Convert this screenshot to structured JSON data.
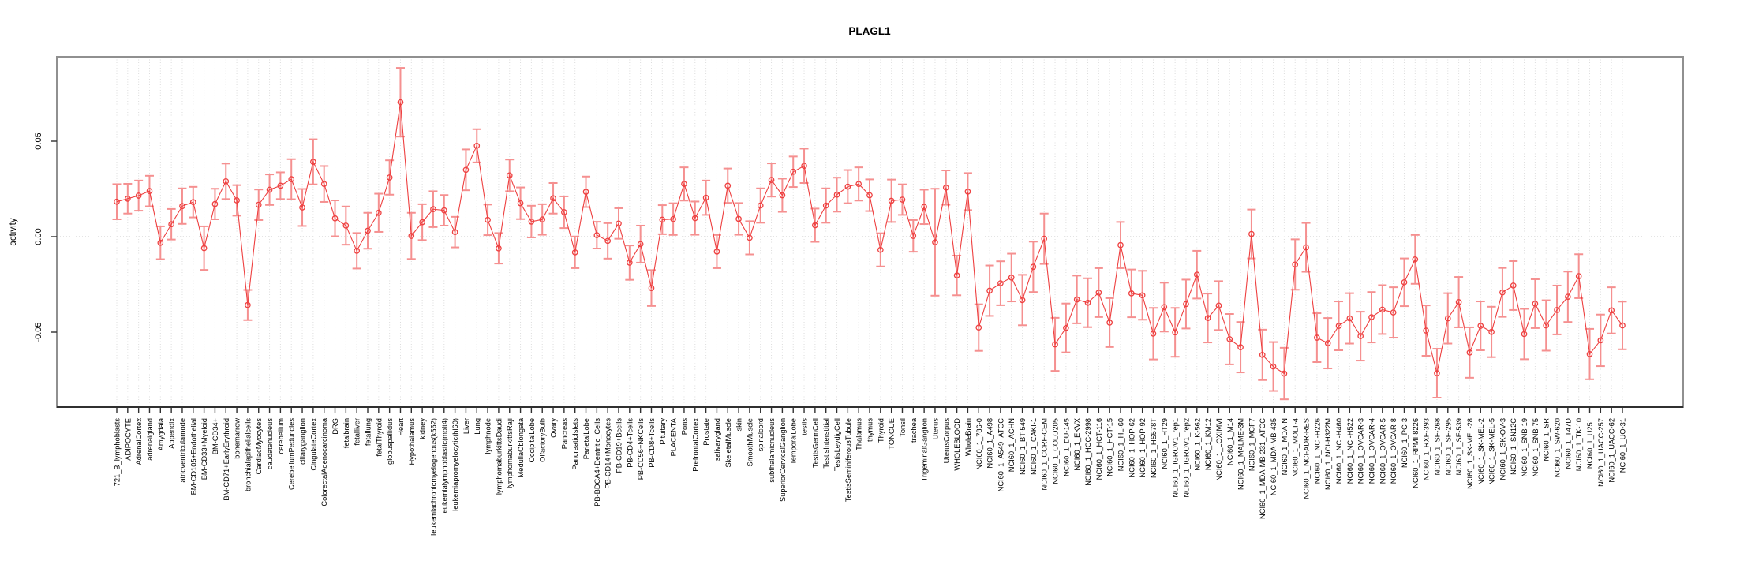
{
  "chart_data": {
    "type": "line",
    "title": "PLAGL1",
    "ylabel": "activity",
    "xlabel": "",
    "legend": "none",
    "grid": "dotted vertical per category, dotted horizontal at 0",
    "ylim": [
      -0.089,
      0.094
    ],
    "yticks": [
      {
        "value": 0.05,
        "label": "0.05"
      },
      {
        "value": 0.0,
        "label": "0.00"
      },
      {
        "value": -0.05,
        "label": "-0.05"
      }
    ],
    "series_color": "#ee4040",
    "errorbar_color": "#f59090",
    "gridline_color": "#dcdcdc",
    "zeroline_color": "#c9c9c9",
    "box_color": "#909090",
    "axis_color": "#303030",
    "marker": "open-circle",
    "categories": [
      "721_B_lymphoblasts",
      "ADIPOCYTE",
      "AdrenalCortex",
      "adrenalgland",
      "Amygdala",
      "Appendix",
      "atrioventricularnode",
      "BM-CD105+Endothelial",
      "BM-CD33+Myeloid",
      "BM-CD34+",
      "BM-CD71+EarlyErythroid",
      "bonemarrow",
      "bronchialepithelialcells",
      "CardiacMyocytes",
      "caudatenucleus",
      "cerebellum",
      "CerebellumPeduncles",
      "ciliaryganglion",
      "CingulateCortex",
      "ColorectalAdenocarcinoma",
      "DRG",
      "fetalbrain",
      "fetalliver",
      "fetallung",
      "fetalThyroid",
      "globuspallidus",
      "Heart",
      "Hypothalamus",
      "kidney",
      "leukemiachronicmyelogenous(k562)",
      "leukemialymphoblastic(molt4)",
      "leukemiapromyelocytic(hl60)",
      "Liver",
      "Lung",
      "lymphnode",
      "lymphomaburkittsDaudi",
      "lymphomaburkittsRaji",
      "MedullaOblongata",
      "OccipitalLobe",
      "OlfactoryBulb",
      "Ovary",
      "Pancreas",
      "PancreaticIslets",
      "ParietalLobe",
      "PB-BDCA4+Dentritic_Cells",
      "PB-CD14+Monocytes",
      "PB-CD19+Bcells",
      "PB-CD4+Tcells",
      "PB-CD56+NKCells",
      "PB-CD8+Tcells",
      "Pituitary",
      "PLACENTA",
      "Pons",
      "PrefrontalCortex",
      "Prostate",
      "salivarygland",
      "SkeletalMuscle",
      "skin",
      "SmoothMuscle",
      "spinalcord",
      "subthalamicnucleus",
      "SuperiorCervicalGanglion",
      "TemporalLobe",
      "testis",
      "TestisGermCell",
      "TestisInterstitial",
      "TestisLeydigCell",
      "TestisSeminiferousTubule",
      "Thalamus",
      "thymus",
      "Thyroid",
      "TONGUE",
      "Tonsil",
      "trachea",
      "TrigeminalGanglion",
      "Uterus",
      "UterusCorpus",
      "WHOLEBLOOD",
      "WholeBrain",
      "NCI60_1_786-0",
      "NCI60_1_A498",
      "NCI60_1_A549_ATCC",
      "NCI60_1_ACHN",
      "NCI60_1_BT-549",
      "NCI60_1_CAKI-1",
      "NCI60_1_CCRF-CEM",
      "NCI60_1_COLO205",
      "NCI60_1_DU-145",
      "NCI60_1_EKVX",
      "NCI60_1_HCC-2998",
      "NCI60_1_HCT-116",
      "NCI60_1_HCT-15",
      "NCI60_1_HL-60",
      "NCI60_1_HOP-62",
      "NCI60_1_HOP-92",
      "NCI60_1_HS578T",
      "NCI60_1_HT29",
      "NCI60_1_IGROV1_rep1",
      "NCI60_1_IGROV1_rep2",
      "NCI60_1_K-562",
      "NCI60_1_KM12",
      "NCI60_1_LOXIMVI",
      "NCI60_1_M14",
      "NCI60_1_MALME-3M",
      "NCI60_1_MCF7",
      "NCI60_1_MDA-MB-231_ATCC",
      "NCI60_1_MDA-MB-435",
      "NCI60_1_MDA-N",
      "NCI60_1_MOLT-4",
      "NCI60_1_NCI-ADR-RES",
      "NCI60_1_NCI-H226",
      "NCI60_1_NCI-H322M",
      "NCI60_1_NCI-H460",
      "NCI60_1_NCI-H522",
      "NCI60_1_OVCAR-3",
      "NCI60_1_OVCAR-4",
      "NCI60_1_OVCAR-5",
      "NCI60_1_OVCAR-8",
      "NCI60_1_PC-3",
      "NCI60_1_RPMI-8226",
      "NCI60_1_RXF-393",
      "NCI60_1_SF-268",
      "NCI60_1_SF-295",
      "NCI60_1_SF-539",
      "NCI60_1_SK-MEL-28",
      "NCI60_1_SK-MEL-2",
      "NCI60_1_SK-MEL-5",
      "NCI60_1_SK-OV-3",
      "NCI60_1_SN12C",
      "NCI60_1_SNB-19",
      "NCI60_1_SNB-75",
      "NCI60_1_SR",
      "NCI60_1_SW-620",
      "NCI60_1_T47D",
      "NCI60_1_TK-10",
      "NCI60_1_U251",
      "NCI60_1_UACC-257",
      "NCI60_1_UACC-62",
      "NCI60_1_UO-31"
    ],
    "values": [
      0.0183,
      0.0199,
      0.0215,
      0.0239,
      -0.0032,
      0.0065,
      0.016,
      0.0181,
      -0.006,
      0.0171,
      0.029,
      0.019,
      -0.0358,
      0.0167,
      0.0246,
      0.0267,
      0.0301,
      0.0153,
      0.0392,
      0.0276,
      0.0096,
      0.0058,
      -0.0074,
      0.0031,
      0.0125,
      0.031,
      0.0704,
      0.0004,
      0.0076,
      0.0144,
      0.0138,
      0.0024,
      0.035,
      0.0476,
      0.0088,
      -0.0061,
      0.0321,
      0.0175,
      0.0079,
      0.009,
      0.0201,
      0.0128,
      -0.0082,
      0.0235,
      0.0008,
      -0.0022,
      0.0069,
      -0.0136,
      -0.0039,
      -0.0269,
      0.0089,
      0.0092,
      0.0276,
      0.0097,
      0.0204,
      -0.0078,
      0.0267,
      0.0093,
      -0.0006,
      0.0163,
      0.0297,
      0.0217,
      0.034,
      0.0371,
      0.006,
      0.0163,
      0.022,
      0.0262,
      0.0276,
      0.0217,
      -0.0069,
      0.0188,
      0.0194,
      0.0004,
      0.0156,
      -0.0029,
      0.0257,
      -0.0203,
      0.0236,
      -0.0476,
      -0.0283,
      -0.0244,
      -0.0214,
      -0.0332,
      -0.0158,
      -0.0011,
      -0.0564,
      -0.0478,
      -0.0329,
      -0.0346,
      -0.0293,
      -0.045,
      -0.0044,
      -0.0297,
      -0.0307,
      -0.0508,
      -0.0369,
      -0.0501,
      -0.0353,
      -0.0199,
      -0.0426,
      -0.0361,
      -0.0537,
      -0.0579,
      0.0014,
      -0.0619,
      -0.068,
      -0.0717,
      -0.0146,
      -0.0056,
      -0.0529,
      -0.0558,
      -0.0467,
      -0.0428,
      -0.0521,
      -0.0422,
      -0.0382,
      -0.0397,
      -0.0239,
      -0.0119,
      -0.0492,
      -0.0715,
      -0.0428,
      -0.0343,
      -0.0607,
      -0.0467,
      -0.0499,
      -0.0292,
      -0.0256,
      -0.051,
      -0.0351,
      -0.0465,
      -0.0384,
      -0.0315,
      -0.0207,
      -0.0615,
      -0.0543,
      -0.0386,
      -0.0465
    ],
    "errors": [
      0.0092,
      0.0078,
      0.0079,
      0.008,
      0.0086,
      0.008,
      0.0093,
      0.008,
      0.0114,
      0.008,
      0.0093,
      0.008,
      0.0079,
      0.008,
      0.008,
      0.007,
      0.0105,
      0.0097,
      0.0118,
      0.0094,
      0.0094,
      0.01,
      0.0093,
      0.0094,
      0.01,
      0.009,
      0.018,
      0.0121,
      0.0094,
      0.0094,
      0.008,
      0.008,
      0.0107,
      0.0087,
      0.008,
      0.008,
      0.0083,
      0.0083,
      0.0083,
      0.008,
      0.008,
      0.0083,
      0.0083,
      0.008,
      0.007,
      0.0093,
      0.008,
      0.009,
      0.0097,
      0.0094,
      0.0076,
      0.0083,
      0.0087,
      0.0087,
      0.009,
      0.0087,
      0.009,
      0.0083,
      0.0087,
      0.009,
      0.0087,
      0.0087,
      0.008,
      0.009,
      0.0087,
      0.009,
      0.0089,
      0.0087,
      0.0087,
      0.0083,
      0.0087,
      0.0111,
      0.008,
      0.0083,
      0.009,
      0.028,
      0.009,
      0.0104,
      0.0097,
      0.0122,
      0.0132,
      0.0115,
      0.0125,
      0.0132,
      0.0132,
      0.0132,
      0.0139,
      0.0128,
      0.0125,
      0.0128,
      0.0128,
      0.0128,
      0.0121,
      0.0125,
      0.0128,
      0.0135,
      0.0128,
      0.0128,
      0.0128,
      0.0125,
      0.0128,
      0.0128,
      0.0132,
      0.0132,
      0.0128,
      0.0132,
      0.0128,
      0.0135,
      0.0132,
      0.0128,
      0.0128,
      0.0132,
      0.0128,
      0.0132,
      0.0128,
      0.0132,
      0.0128,
      0.0132,
      0.0125,
      0.0128,
      0.0132,
      0.0128,
      0.0132,
      0.0132,
      0.0132,
      0.0128,
      0.0132,
      0.0128,
      0.0128,
      0.0132,
      0.0128,
      0.0132,
      0.0128,
      0.0132,
      0.0115,
      0.0132,
      0.0135,
      0.0121,
      0.0125
    ]
  }
}
